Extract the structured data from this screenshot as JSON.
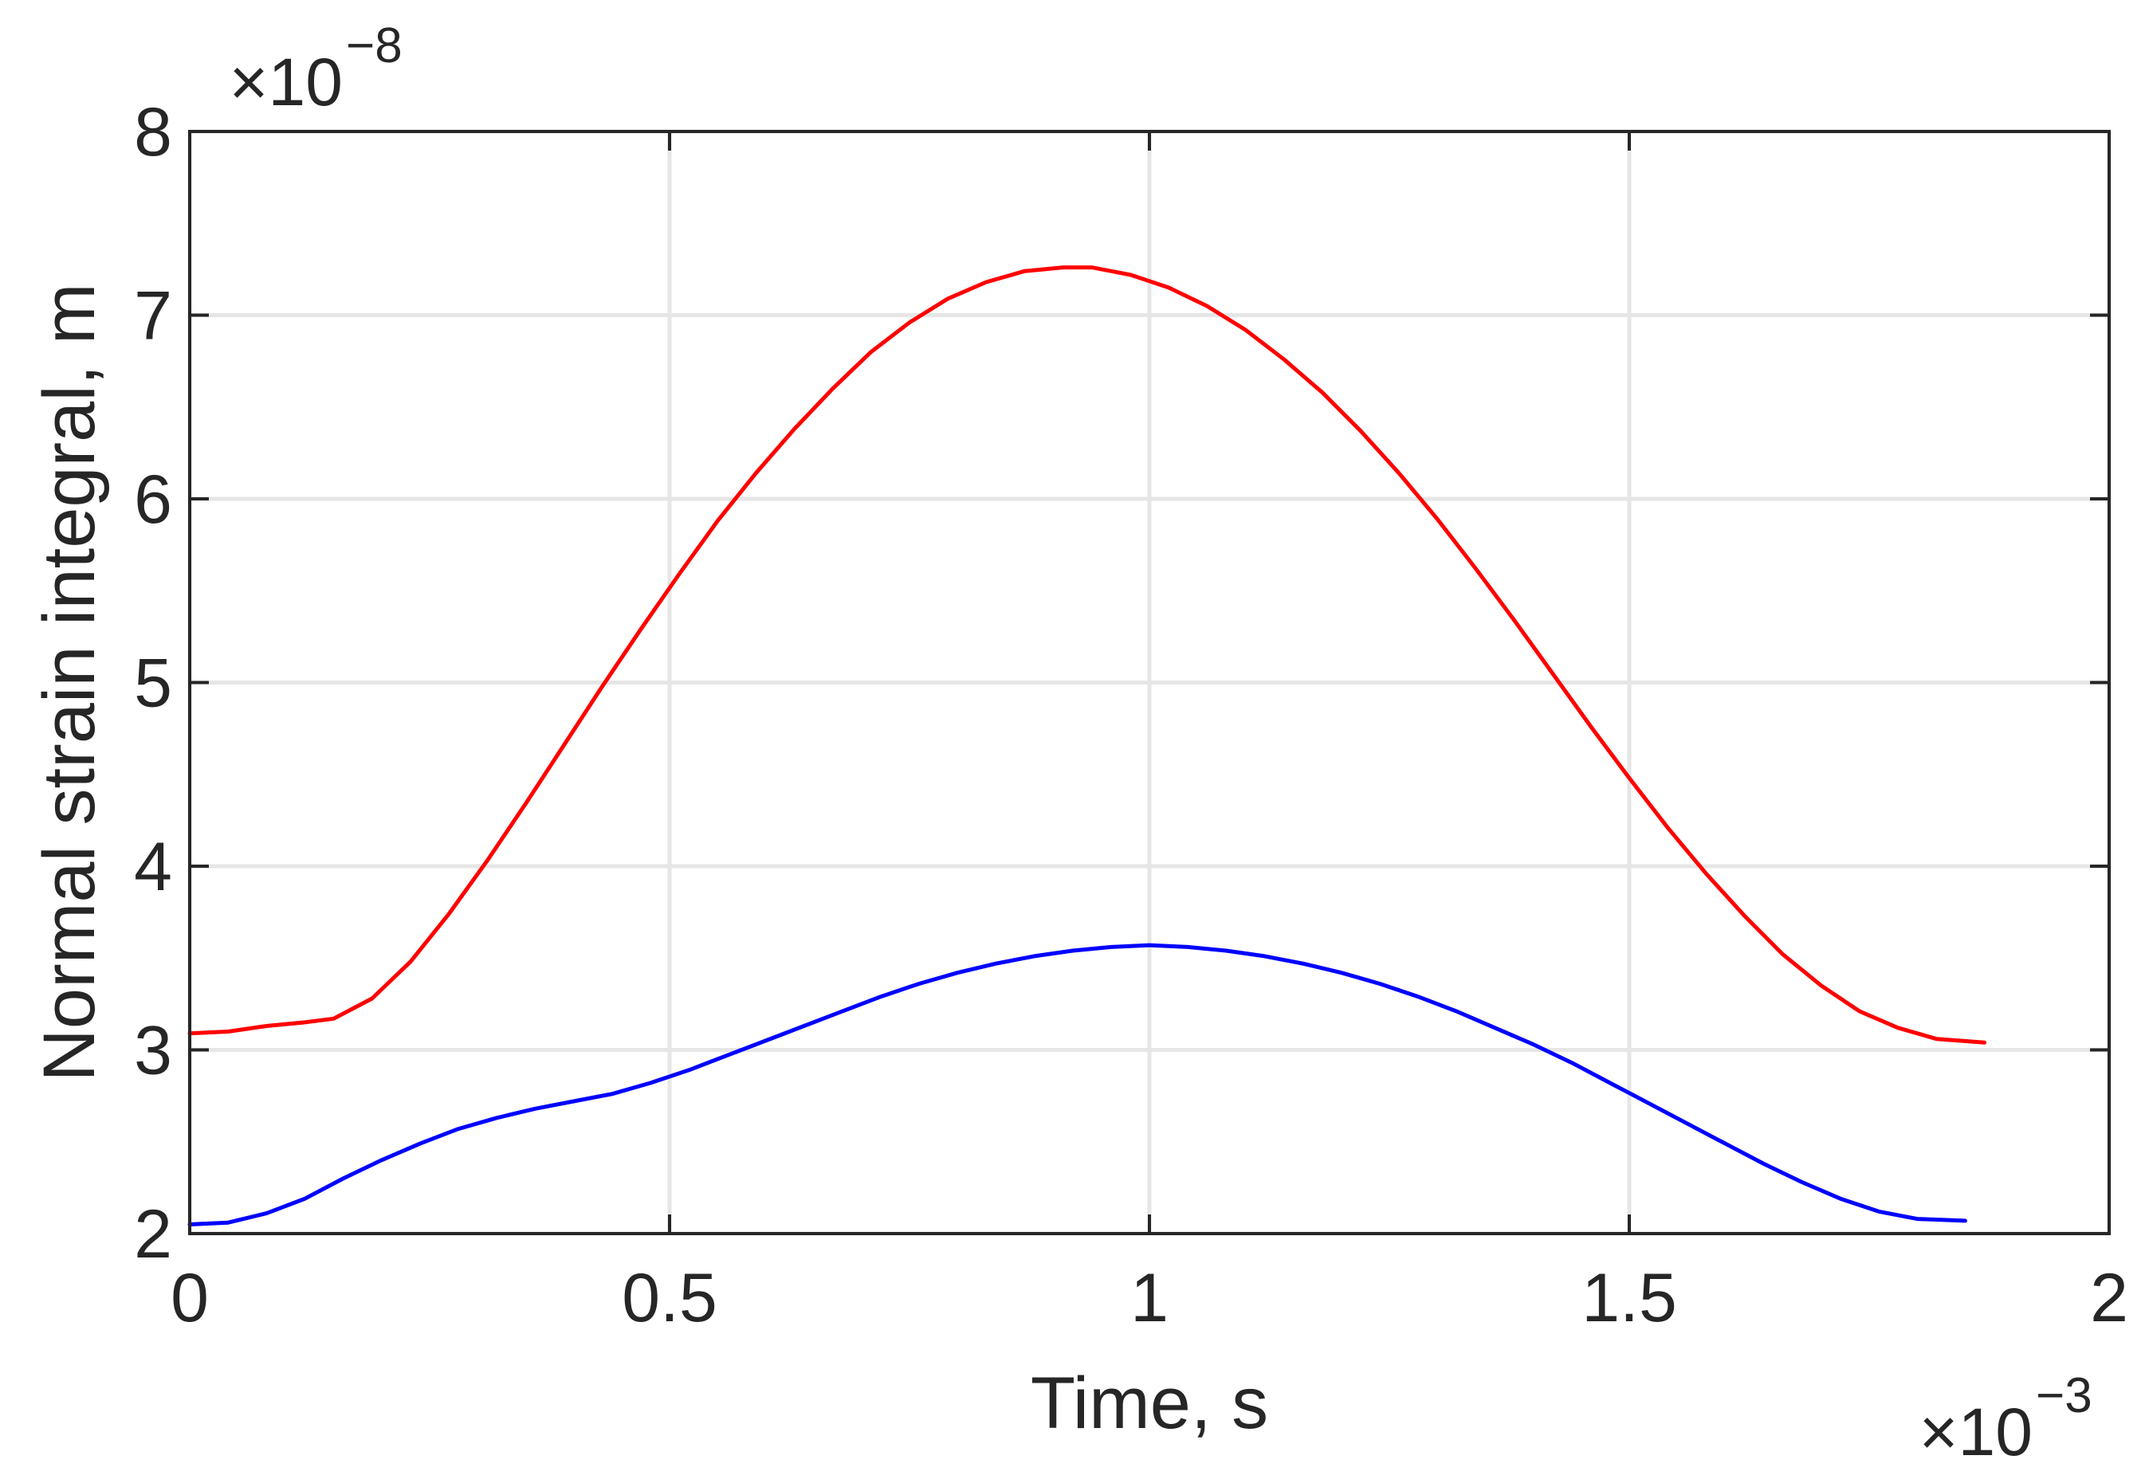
{
  "chart_data": {
    "type": "line",
    "title": "",
    "xlabel": "Time, s",
    "ylabel": "Normal strain integral, m",
    "x_multiplier": {
      "base": "×10",
      "exponent": "−3"
    },
    "y_multiplier": {
      "base": "×10",
      "exponent": "−8"
    },
    "xlim": [
      0,
      2
    ],
    "ylim": [
      2,
      8
    ],
    "xticks": [
      0,
      0.5,
      1,
      1.5,
      2
    ],
    "xtick_labels": [
      "0",
      "0.5",
      "1",
      "1.5",
      "2"
    ],
    "yticks": [
      2,
      3,
      4,
      5,
      6,
      7,
      8
    ],
    "ytick_labels": [
      "2",
      "3",
      "4",
      "5",
      "6",
      "7",
      "8"
    ],
    "grid": true,
    "legend": false,
    "colors": {
      "axes": "#262626",
      "grid": "#e6e6e6",
      "red": "#ff0000",
      "blue": "#0000ff"
    },
    "series": [
      {
        "color": "#ff0000",
        "x": [
          0.0,
          0.04,
          0.08,
          0.12,
          0.15,
          0.19,
          0.23,
          0.27,
          0.31,
          0.35,
          0.39,
          0.43,
          0.47,
          0.51,
          0.55,
          0.59,
          0.63,
          0.67,
          0.71,
          0.75,
          0.79,
          0.83,
          0.87,
          0.91,
          0.94,
          0.98,
          1.02,
          1.06,
          1.1,
          1.14,
          1.18,
          1.22,
          1.26,
          1.3,
          1.34,
          1.38,
          1.42,
          1.46,
          1.5,
          1.54,
          1.58,
          1.62,
          1.66,
          1.7,
          1.74,
          1.78,
          1.82,
          1.87
        ],
        "y": [
          3.09,
          3.1,
          3.13,
          3.15,
          3.17,
          3.28,
          3.48,
          3.74,
          4.03,
          4.34,
          4.66,
          4.98,
          5.29,
          5.59,
          5.88,
          6.14,
          6.38,
          6.6,
          6.8,
          6.96,
          7.09,
          7.18,
          7.24,
          7.26,
          7.26,
          7.22,
          7.15,
          7.05,
          6.92,
          6.76,
          6.58,
          6.37,
          6.14,
          5.89,
          5.62,
          5.34,
          5.05,
          4.76,
          4.48,
          4.21,
          3.96,
          3.73,
          3.52,
          3.35,
          3.21,
          3.12,
          3.06,
          3.04
        ]
      },
      {
        "color": "#0000ff",
        "x": [
          0.0,
          0.04,
          0.08,
          0.12,
          0.16,
          0.2,
          0.24,
          0.28,
          0.32,
          0.36,
          0.4,
          0.44,
          0.48,
          0.52,
          0.56,
          0.6,
          0.64,
          0.68,
          0.72,
          0.76,
          0.8,
          0.84,
          0.88,
          0.92,
          0.96,
          1.0,
          1.04,
          1.08,
          1.12,
          1.16,
          1.2,
          1.24,
          1.28,
          1.32,
          1.36,
          1.4,
          1.44,
          1.48,
          1.52,
          1.56,
          1.6,
          1.64,
          1.68,
          1.72,
          1.76,
          1.8,
          1.85
        ],
        "y": [
          2.05,
          2.06,
          2.11,
          2.19,
          2.3,
          2.4,
          2.49,
          2.57,
          2.63,
          2.68,
          2.72,
          2.76,
          2.82,
          2.89,
          2.97,
          3.05,
          3.13,
          3.21,
          3.29,
          3.36,
          3.42,
          3.47,
          3.51,
          3.54,
          3.56,
          3.57,
          3.56,
          3.54,
          3.51,
          3.47,
          3.42,
          3.36,
          3.29,
          3.21,
          3.12,
          3.03,
          2.93,
          2.82,
          2.71,
          2.6,
          2.49,
          2.38,
          2.28,
          2.19,
          2.12,
          2.08,
          2.07
        ]
      }
    ]
  }
}
